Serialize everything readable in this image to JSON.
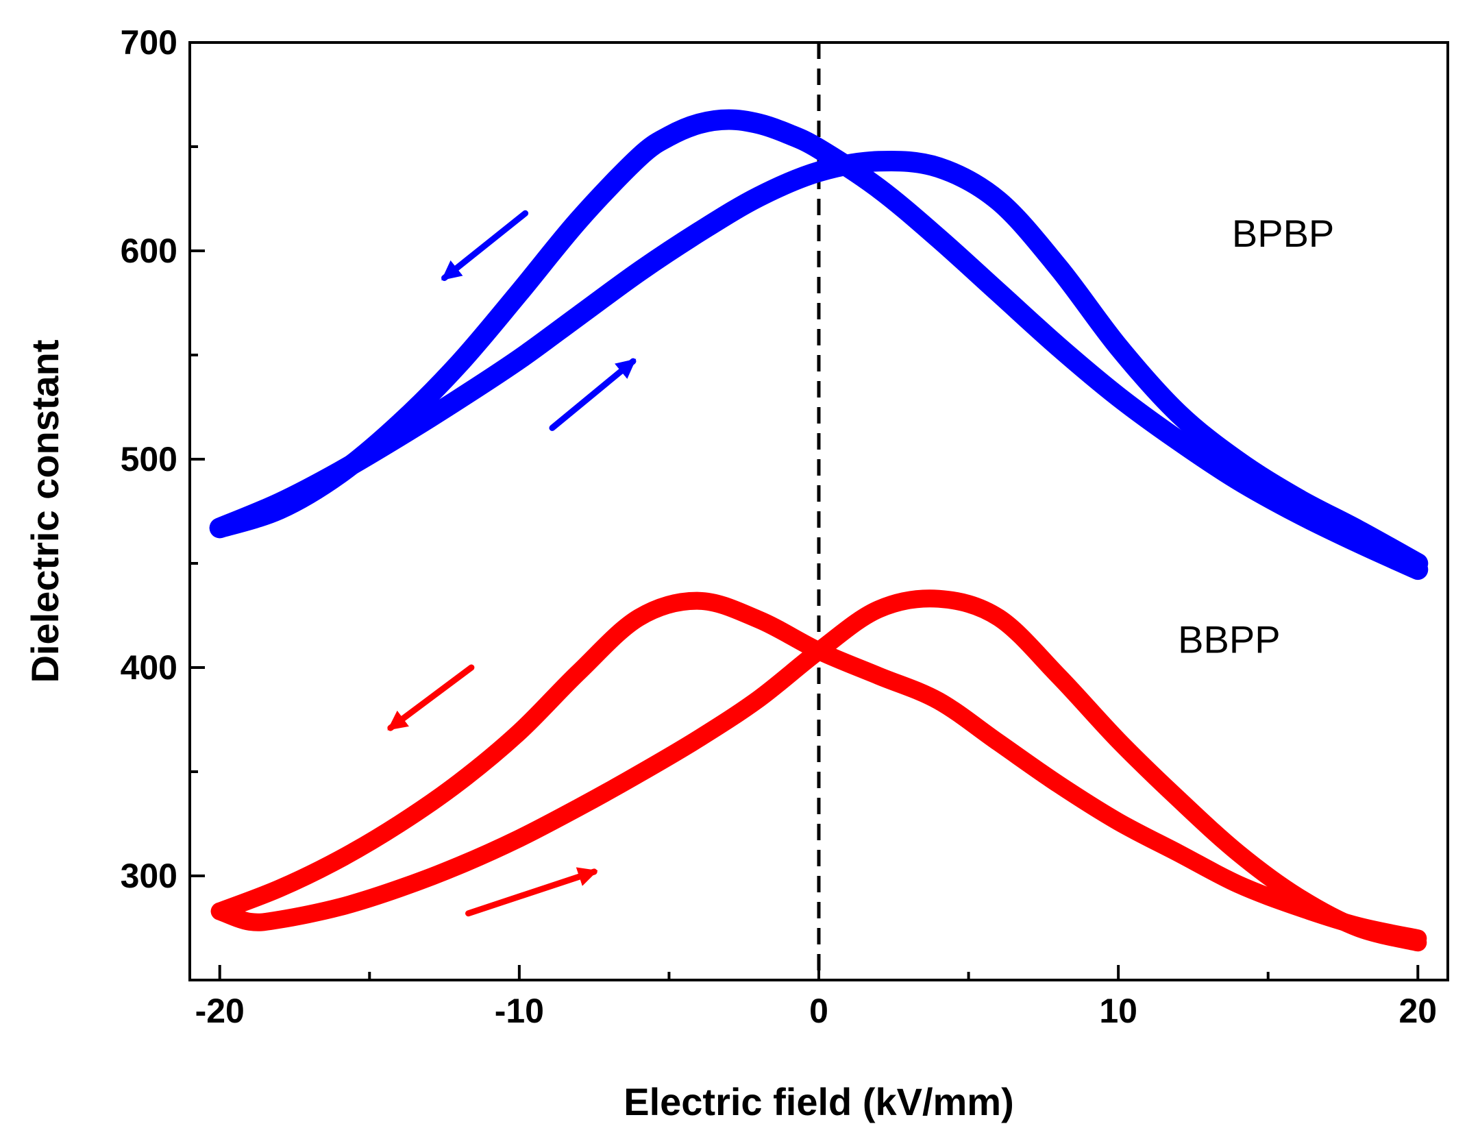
{
  "chart_data": {
    "type": "line",
    "title": "",
    "xlabel": "Electric field (kV/mm)",
    "ylabel": "Dielectric constant",
    "xlim": [
      -21,
      21
    ],
    "ylim": [
      250,
      700
    ],
    "xticks": [
      -20,
      -10,
      0,
      10,
      20
    ],
    "xtick_labels": [
      "-20",
      "-10",
      "0",
      "10",
      "20"
    ],
    "yticks": [
      300,
      400,
      500,
      600,
      700
    ],
    "ytick_labels": [
      "300",
      "400",
      "500",
      "600",
      "700"
    ],
    "grid": false,
    "reference_line": {
      "x": 0,
      "style": "dashed"
    },
    "series": [
      {
        "name": "BPBP",
        "color": "#0000ff",
        "branches": [
          {
            "sweep": "decreasing field",
            "x": [
              20,
              18,
              16,
              14,
              12,
              10,
              8,
              6,
              4,
              2,
              0,
              -1,
              -2,
              -3,
              -4,
              -5,
              -6,
              -8,
              -10,
              -12,
              -14,
              -16,
              -18,
              -20
            ],
            "y": [
              447,
              460,
              474,
              490,
              509,
              530,
              554,
              580,
              606,
              630,
              649,
              656,
              661,
              663,
              661,
              655,
              645,
              615,
              580,
              546,
              517,
              493,
              476,
              467
            ]
          },
          {
            "sweep": "increasing field",
            "x": [
              -20,
              -18,
              -16,
              -14,
              -12,
              -10,
              -8,
              -6,
              -4,
              -2,
              0,
              2,
              4,
              6,
              8,
              10,
              12,
              14,
              16,
              18,
              20
            ],
            "y": [
              467,
              479,
              494,
              511,
              529,
              548,
              569,
              590,
              609,
              626,
              638,
              643,
              640,
              624,
              592,
              554,
              522,
              499,
              481,
              466,
              450
            ]
          }
        ]
      },
      {
        "name": "BBPP",
        "color": "#ff0000",
        "branches": [
          {
            "sweep": "decreasing field",
            "x": [
              20,
              18,
              16,
              14,
              12,
              10,
              8,
              6,
              4,
              2,
              0,
              -2,
              -4,
              -6,
              -8,
              -10,
              -12,
              -14,
              -16,
              -18,
              -20
            ],
            "y": [
              270,
              276,
              285,
              296,
              311,
              326,
              344,
              364,
              384,
              396,
              408,
              423,
              432,
              424,
              398,
              369,
              345,
              325,
              308,
              294,
              283
            ]
          },
          {
            "sweep": "increasing field",
            "x": [
              -20,
              -19,
              -18,
              -16,
              -14,
              -12,
              -10,
              -8,
              -6,
              -4,
              -2,
              0,
              2,
              4,
              6,
              8,
              10,
              12,
              14,
              16,
              18,
              20
            ],
            "y": [
              283,
              278,
              279,
              285,
              294,
              305,
              318,
              333,
              349,
              366,
              385,
              408,
              428,
              433,
              424,
              396,
              365,
              337,
              311,
              290,
              275,
              268
            ]
          }
        ]
      }
    ],
    "series_label_positions": [
      {
        "name": "BPBP",
        "x": 15.5,
        "y": 602
      },
      {
        "name": "BBPP",
        "x": 13.7,
        "y": 407
      }
    ],
    "arrows": [
      {
        "series": "BPBP",
        "direction": "decreasing",
        "from": [
          -9.8,
          618
        ],
        "to": [
          -12.5,
          587
        ]
      },
      {
        "series": "BPBP",
        "direction": "increasing",
        "from": [
          -8.9,
          515
        ],
        "to": [
          -6.2,
          547
        ]
      },
      {
        "series": "BBPP",
        "direction": "decreasing",
        "from": [
          -11.6,
          400
        ],
        "to": [
          -14.3,
          371
        ]
      },
      {
        "series": "BBPP",
        "direction": "increasing",
        "from": [
          -11.7,
          282
        ],
        "to": [
          -7.5,
          302
        ]
      }
    ]
  }
}
